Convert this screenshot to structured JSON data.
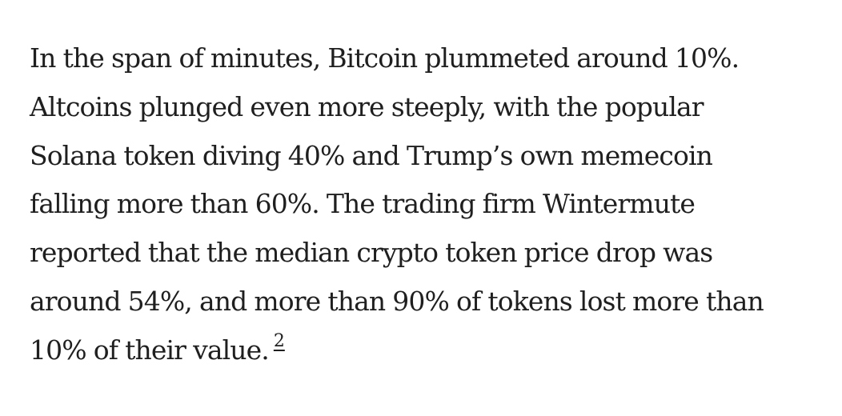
{
  "article": {
    "lines": [
      "In the span of minutes, Bitcoin plummeted around 10%.",
      "Altcoins plunged even more steeply, with the popular",
      "Solana token diving 40% and Trump’s own memecoin",
      "falling more than 60%. The trading firm Wintermute",
      "reported that the median crypto token price drop was",
      "around 54%, and more than 90% of tokens lost more than",
      "10% of their value."
    ],
    "footnote": "2"
  }
}
